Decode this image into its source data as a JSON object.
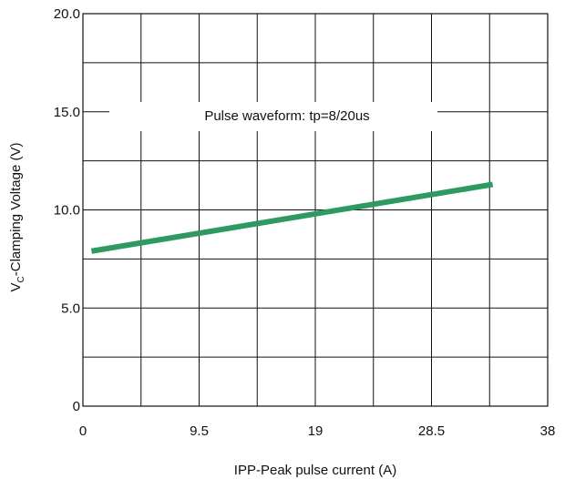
{
  "chart_data": {
    "type": "line",
    "title": "",
    "xlabel": "IPP-Peak pulse current (A)",
    "ylabel": {
      "prefix": "V",
      "subscript": "C",
      "suffix": "-Clamping Voltage (V)"
    },
    "xlim": [
      0,
      38
    ],
    "ylim": [
      0,
      20
    ],
    "x_ticks": [
      "0",
      "9.5",
      "19",
      "28.5",
      "38"
    ],
    "y_ticks": [
      "0",
      "5.0",
      "10.0",
      "15.0",
      "20.0"
    ],
    "grid": true,
    "x_grid_step": 4.75,
    "y_grid_step": 2.5,
    "series": [
      {
        "color": "#2e9960",
        "x": [
          0.7,
          33.5
        ],
        "y": [
          7.9,
          11.3
        ]
      }
    ],
    "annotation": "Pulse waveform: tp=8/20us"
  }
}
